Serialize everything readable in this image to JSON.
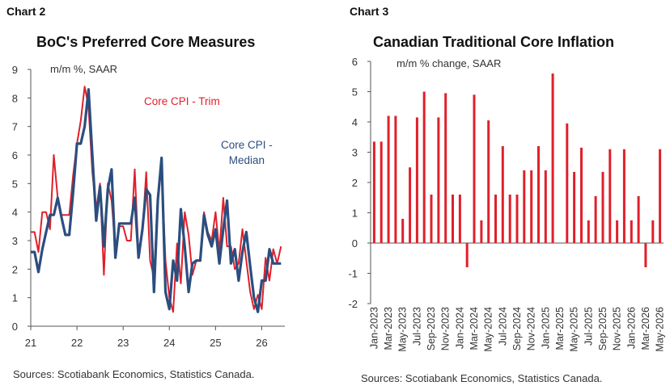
{
  "chart_data": [
    {
      "type": "line",
      "panel_label": "Chart 2",
      "title": "BoC's Preferred Core Measures",
      "ylabel": "m/m %, SAAR",
      "xlabel": "",
      "ylim": [
        0,
        9
      ],
      "xlim": [
        21,
        26.5
      ],
      "y_ticks": [
        "0",
        "1",
        "2",
        "3",
        "4",
        "5",
        "6",
        "7",
        "8",
        "9"
      ],
      "x_ticks": [
        "21",
        "22",
        "23",
        "24",
        "25",
        "26"
      ],
      "x_tick_values": [
        21,
        22,
        23,
        24,
        25,
        26
      ],
      "grid": false,
      "source": "Sources: Scotiabank Economics, Statistics Canada.",
      "series": [
        {
          "name": "Core CPI - Trim",
          "label_lines": [
            "Core CPI - Trim"
          ],
          "color": "#e0202a",
          "x": [
            21.0,
            21.083,
            21.167,
            21.25,
            21.333,
            21.417,
            21.5,
            21.583,
            21.667,
            21.75,
            21.833,
            21.917,
            22.0,
            22.083,
            22.167,
            22.25,
            22.333,
            22.417,
            22.5,
            22.583,
            22.667,
            22.75,
            22.833,
            22.917,
            23.0,
            23.083,
            23.167,
            23.25,
            23.333,
            23.417,
            23.5,
            23.583,
            23.667,
            23.75,
            23.833,
            23.917,
            24.0,
            24.083,
            24.167,
            24.25,
            24.333,
            24.417,
            24.5,
            24.583,
            24.667,
            24.75,
            24.833,
            24.917,
            25.0,
            25.083,
            25.167,
            25.25,
            25.333,
            25.417,
            25.5,
            25.583,
            25.667,
            25.75,
            25.833,
            25.917,
            26.0,
            26.083,
            26.167,
            26.25,
            26.333,
            26.417
          ],
          "values": [
            3.3,
            3.3,
            2.6,
            4.0,
            4.0,
            3.4,
            6.0,
            4.5,
            3.9,
            3.9,
            3.9,
            5.3,
            6.4,
            7.2,
            8.4,
            7.7,
            5.4,
            4.1,
            5.0,
            1.8,
            5.0,
            4.4,
            2.7,
            3.5,
            3.5,
            3.0,
            3.0,
            5.5,
            2.5,
            3.3,
            5.4,
            2.3,
            1.7,
            4.6,
            5.6,
            2.3,
            1.0,
            0.5,
            2.9,
            1.5,
            4.0,
            3.2,
            1.8,
            2.3,
            2.3,
            4.0,
            3.3,
            3.0,
            4.0,
            2.6,
            4.5,
            2.8,
            2.8,
            2.0,
            2.2,
            3.4,
            2.3,
            1.2,
            0.6,
            1.1,
            0.6,
            2.4,
            1.6,
            2.7,
            2.2,
            2.8
          ]
        },
        {
          "name": "Core CPI - Median",
          "label_lines": [
            "Core CPI -",
            "Median"
          ],
          "color": "#2b4e7f",
          "x": [
            21.0,
            21.083,
            21.167,
            21.25,
            21.333,
            21.417,
            21.5,
            21.583,
            21.667,
            21.75,
            21.833,
            21.917,
            22.0,
            22.083,
            22.167,
            22.25,
            22.333,
            22.417,
            22.5,
            22.583,
            22.667,
            22.75,
            22.833,
            22.917,
            23.0,
            23.083,
            23.167,
            23.25,
            23.333,
            23.417,
            23.5,
            23.583,
            23.667,
            23.75,
            23.833,
            23.917,
            24.0,
            24.083,
            24.167,
            24.25,
            24.333,
            24.417,
            24.5,
            24.583,
            24.667,
            24.75,
            24.833,
            24.917,
            25.0,
            25.083,
            25.167,
            25.25,
            25.333,
            25.417,
            25.5,
            25.583,
            25.667,
            25.75,
            25.833,
            25.917,
            26.0,
            26.083,
            26.167,
            26.25,
            26.333,
            26.417
          ],
          "values": [
            2.6,
            2.6,
            1.9,
            2.7,
            3.3,
            3.9,
            3.9,
            4.5,
            3.8,
            3.2,
            3.2,
            4.7,
            6.4,
            6.4,
            7.0,
            8.3,
            6.0,
            3.7,
            4.9,
            2.8,
            4.8,
            5.5,
            2.4,
            3.6,
            3.6,
            3.6,
            3.6,
            4.5,
            2.4,
            3.4,
            4.8,
            4.6,
            1.2,
            4.4,
            5.9,
            1.2,
            0.6,
            2.3,
            1.6,
            4.1,
            2.8,
            1.2,
            2.2,
            2.3,
            2.3,
            3.9,
            3.2,
            2.8,
            3.4,
            2.2,
            3.4,
            4.4,
            2.2,
            2.7,
            1.6,
            2.6,
            3.3,
            2.1,
            1.0,
            0.5,
            1.6,
            1.6,
            2.7,
            2.2,
            2.2,
            2.2
          ]
        }
      ]
    },
    {
      "type": "bar",
      "panel_label": "Chart 3",
      "title": "Canadian Traditional Core Inflation",
      "ylabel": "m/m % change, SAAR",
      "xlabel": "",
      "ylim": [
        -2,
        6
      ],
      "y_ticks": [
        "-2",
        "-1",
        "0",
        "1",
        "2",
        "3",
        "4",
        "5",
        "6"
      ],
      "grid": false,
      "source": "Sources: Scotiabank Economics, Statistics Canada.",
      "color": "#e0202a",
      "tick_labels": [
        "Jan-2023",
        "Mar-2023",
        "May-2023",
        "Jul-2023",
        "Sep-2023",
        "Nov-2023",
        "Jan-2024",
        "Mar-2024",
        "May-2024",
        "Jul-2024",
        "Sep-2024",
        "Nov-2024",
        "Jan-2025",
        "Mar-2025",
        "May-2025",
        "Jul-2025",
        "Sep-2025",
        "Nov-2025",
        "Jan-2026",
        "Mar-2026",
        "May-2026"
      ],
      "categories": [
        "Jan-2023",
        "Feb-2023",
        "Mar-2023",
        "Apr-2023",
        "May-2023",
        "Jun-2023",
        "Jul-2023",
        "Aug-2023",
        "Sep-2023",
        "Oct-2023",
        "Nov-2023",
        "Dec-2023",
        "Jan-2024",
        "Feb-2024",
        "Mar-2024",
        "Apr-2024",
        "May-2024",
        "Jun-2024",
        "Jul-2024",
        "Aug-2024",
        "Sep-2024",
        "Oct-2024",
        "Nov-2024",
        "Dec-2024",
        "Jan-2025",
        "Feb-2025",
        "Mar-2025",
        "Apr-2025",
        "May-2025",
        "Jun-2025",
        "Jul-2025",
        "Aug-2025",
        "Sep-2025",
        "Oct-2025",
        "Nov-2025",
        "Dec-2025",
        "Jan-2026",
        "Feb-2026",
        "Mar-2026",
        "Apr-2026",
        "May-2026"
      ],
      "values": [
        3.35,
        3.35,
        4.2,
        4.2,
        0.8,
        2.5,
        4.15,
        5.0,
        1.6,
        4.15,
        4.95,
        1.6,
        1.6,
        -0.8,
        4.9,
        0.75,
        4.05,
        1.6,
        3.2,
        1.6,
        1.6,
        2.4,
        2.4,
        3.2,
        2.4,
        5.6,
        0.0,
        3.95,
        2.35,
        3.15,
        0.75,
        1.55,
        2.35,
        3.1,
        0.75,
        3.1,
        0.75,
        1.55,
        -0.8,
        0.75,
        3.1
      ]
    }
  ]
}
